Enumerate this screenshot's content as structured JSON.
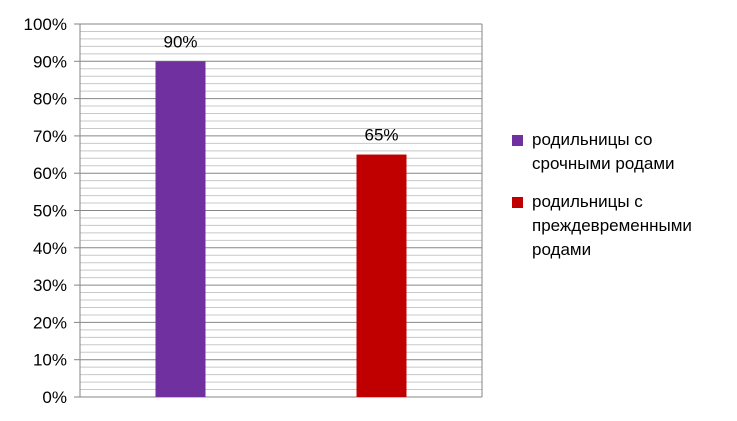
{
  "chart_data": {
    "type": "bar",
    "categories": [
      "родильницы со срочными родами",
      "родильницы с преждевременными родами"
    ],
    "values": [
      90,
      65
    ],
    "data_labels": [
      "90%",
      "65%"
    ],
    "colors": [
      "#7030A0",
      "#C00000"
    ],
    "ylim": [
      0,
      100
    ],
    "y_ticks": [
      "0%",
      "10%",
      "20%",
      "30%",
      "40%",
      "50%",
      "60%",
      "70%",
      "80%",
      "90%",
      "100%"
    ],
    "grid": true,
    "legend": {
      "position": "right",
      "items": [
        "родильницы со срочными родами",
        "родильницы с преждевременными родами"
      ]
    }
  }
}
